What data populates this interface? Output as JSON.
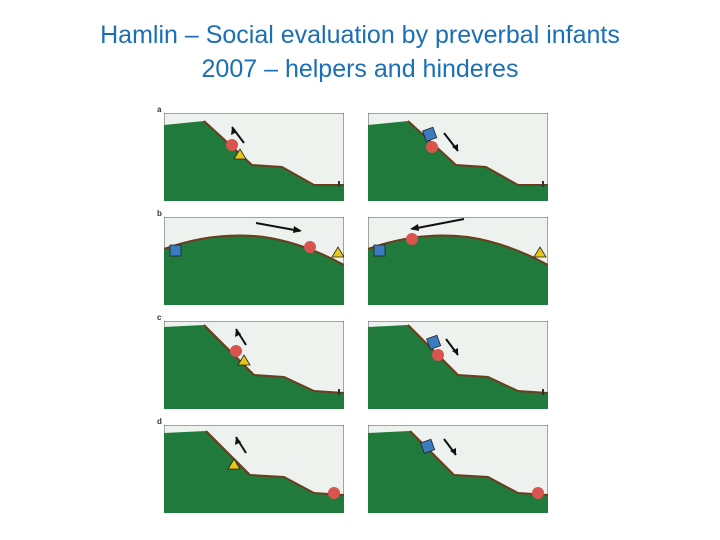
{
  "slide": {
    "title_line1": "Hamlin – Social evaluation by preverbal infants",
    "title_line2": "2007 – helpers and hinderes"
  },
  "figure": {
    "rows": [
      {
        "label": "a"
      },
      {
        "label": "b"
      },
      {
        "label": "c"
      },
      {
        "label": "d"
      }
    ]
  },
  "colors": {
    "title": "#1a6fb5",
    "hill": "#1f7a3c",
    "sky": "#f2f5f2",
    "climber": "#d9534f",
    "helper_triangle": "#e6c618",
    "hinderer_square": "#3b7bbf"
  }
}
